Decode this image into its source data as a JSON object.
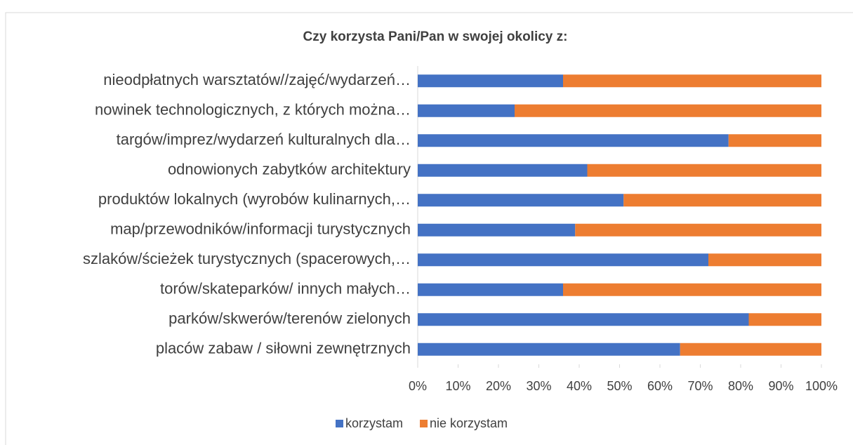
{
  "chart_data": {
    "type": "stacked_bar_horizontal",
    "title": "Czy korzysta Pani/Pan w swojej okolicy z:",
    "categories": [
      "nieodpłatnych warsztatów//zajęć/wydarzeń…",
      "nowinek technologicznych, z których można…",
      "targów/imprez/wydarzeń kulturalnych dla…",
      "odnowionych zabytków architektury",
      "produktów lokalnych (wyrobów kulinarnych,…",
      "map/przewodników/informacji turystycznych",
      "szlaków/ścieżek turystycznych (spacerowych,…",
      "torów/skateparków/ innych małych…",
      "parków/skwerów/terenów zielonych",
      "placów zabaw / siłowni zewnętrznych"
    ],
    "series": [
      {
        "name": "korzystam",
        "color": "#4472c4",
        "values": [
          36,
          24,
          77,
          42,
          51,
          39,
          72,
          36,
          82,
          65
        ]
      },
      {
        "name": "nie korzystam",
        "color": "#ed7d31",
        "values": [
          64,
          76,
          23,
          58,
          49,
          61,
          28,
          64,
          18,
          35
        ]
      }
    ],
    "xlim": [
      0,
      100
    ],
    "xticks": [
      {
        "value": 0,
        "label": "0%"
      },
      {
        "value": 10,
        "label": "10%"
      },
      {
        "value": 20,
        "label": "20%"
      },
      {
        "value": 30,
        "label": "30%"
      },
      {
        "value": 40,
        "label": "40%"
      },
      {
        "value": 50,
        "label": "50%"
      },
      {
        "value": 60,
        "label": "60%"
      },
      {
        "value": 70,
        "label": "70%"
      },
      {
        "value": 80,
        "label": "80%"
      },
      {
        "value": 90,
        "label": "90%"
      },
      {
        "value": 100,
        "label": "100%"
      }
    ],
    "grid": false,
    "legend": "bottom"
  }
}
